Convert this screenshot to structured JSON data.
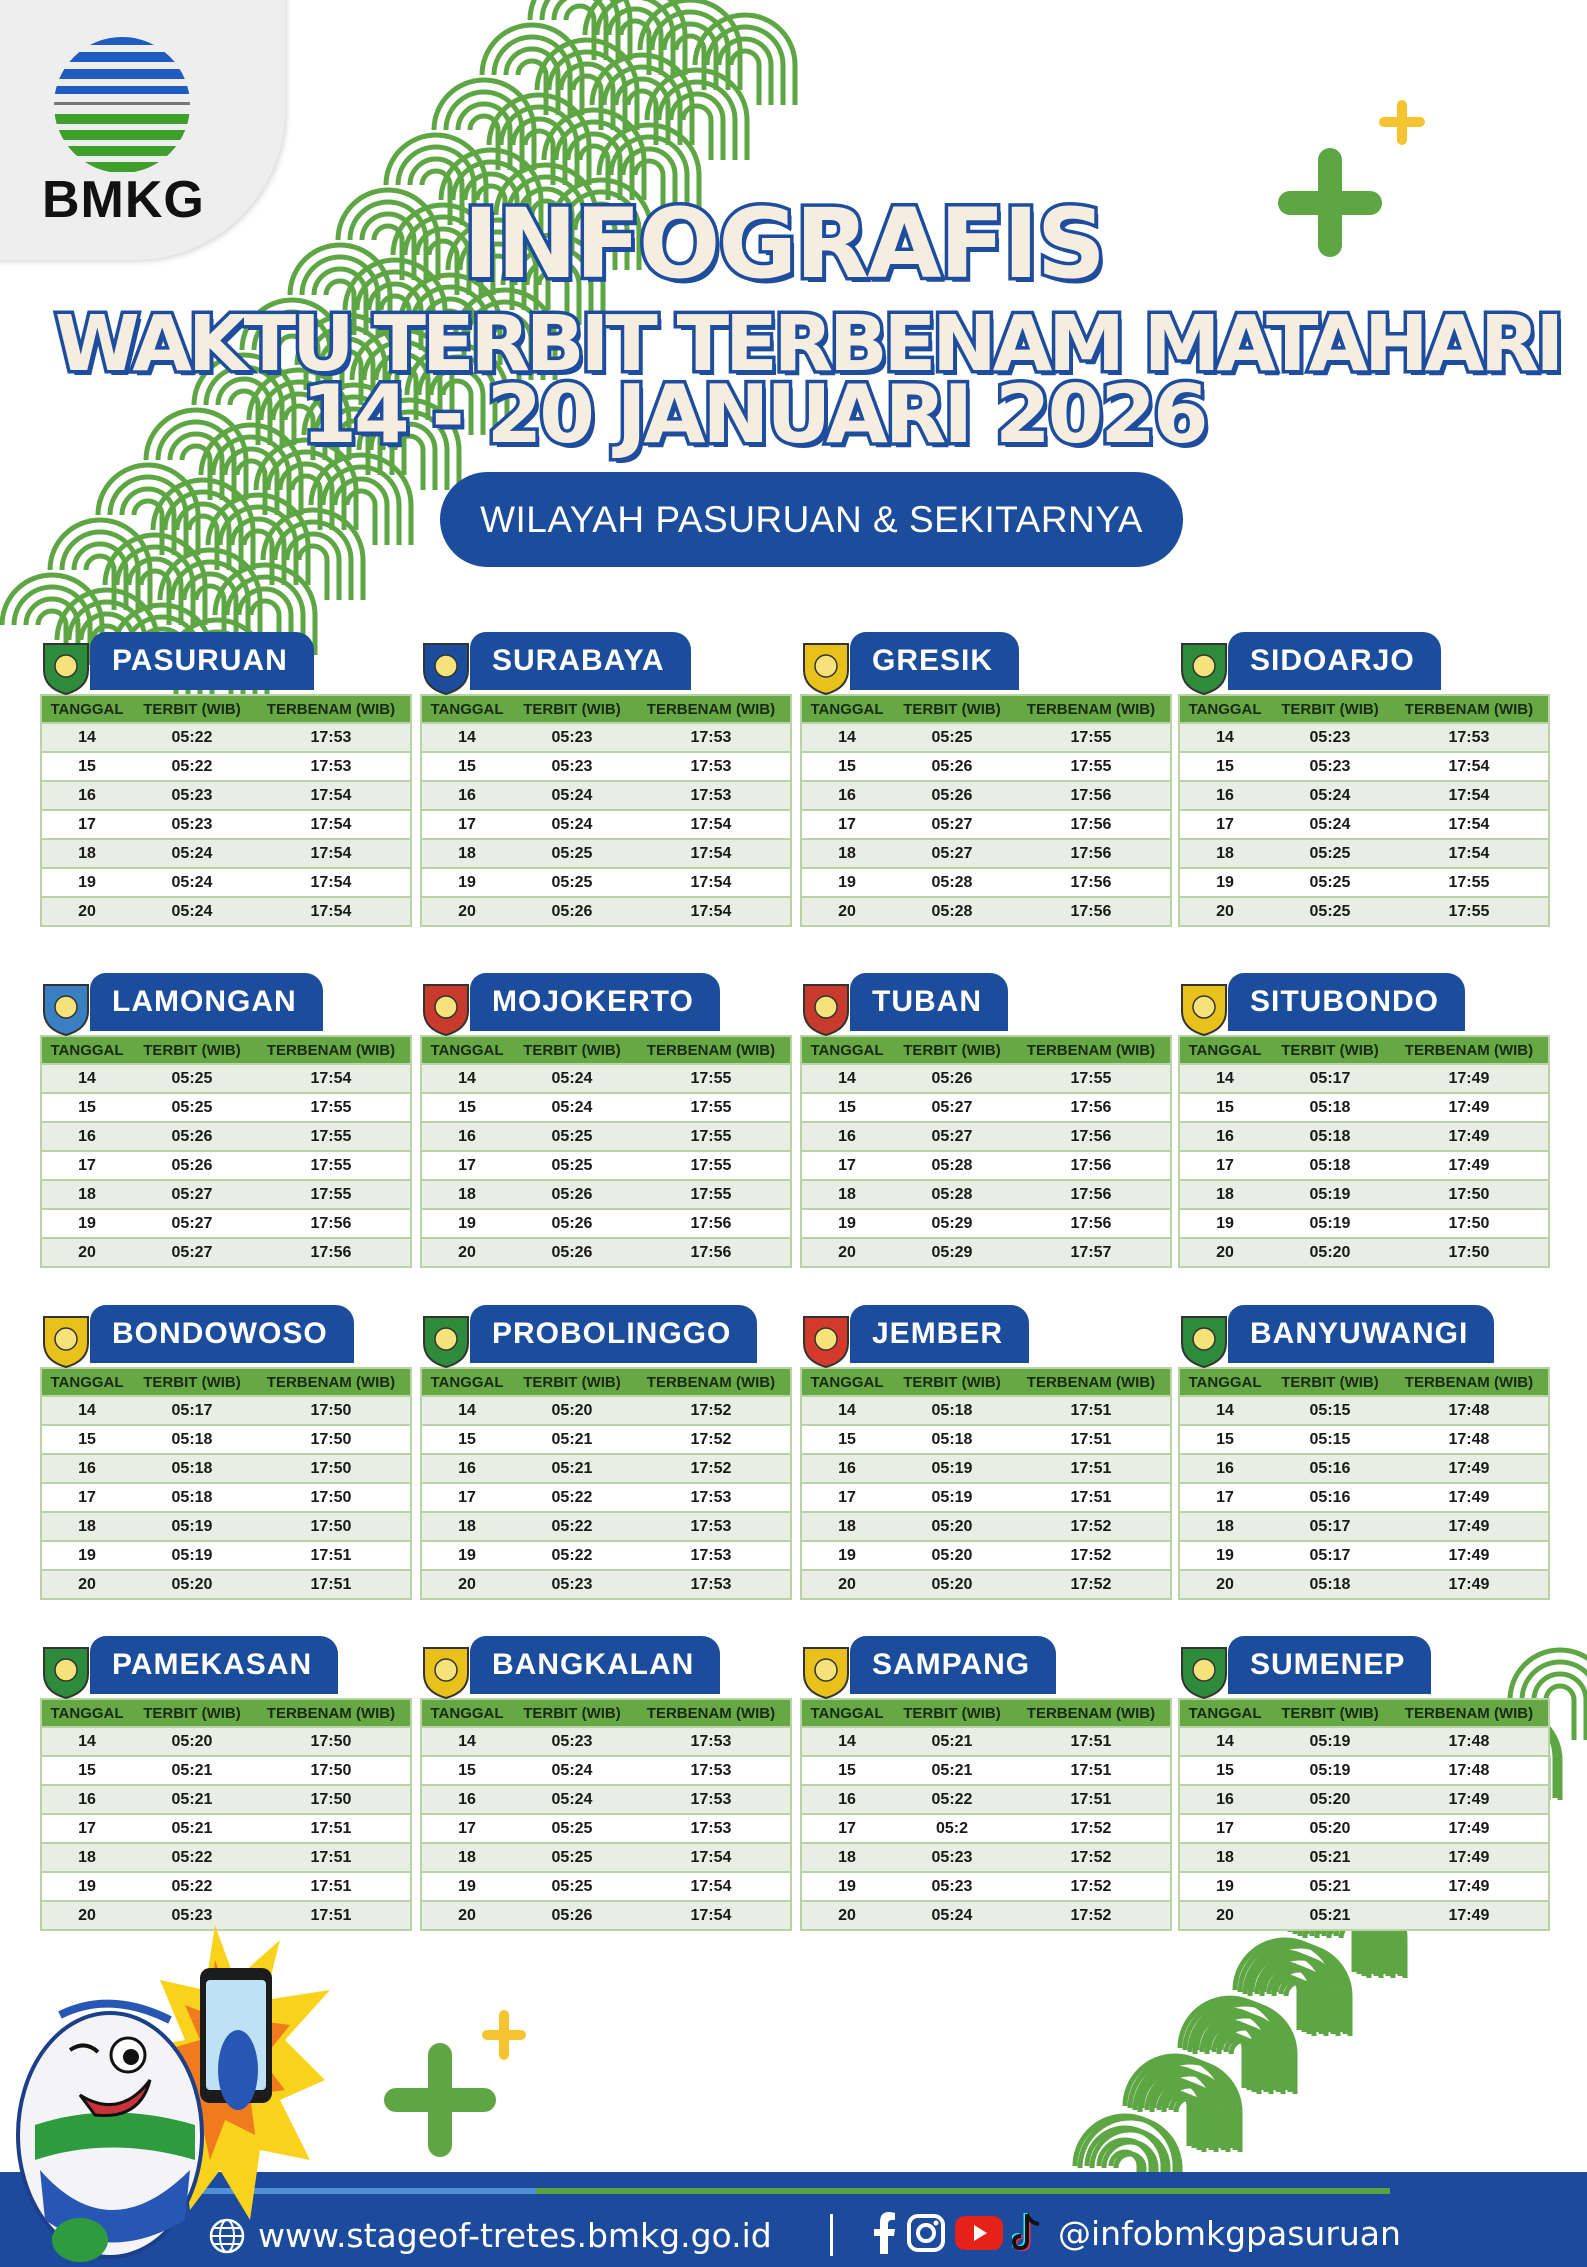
{
  "brand": {
    "logo_text": "BMKG",
    "colors": {
      "blue": "#1c4c9c",
      "green": "#66a844",
      "cream": "#f4ede0",
      "yellow": "#f6c431"
    }
  },
  "header": {
    "title_line1": "INFOGRAFIS",
    "title_line2": "WAKTU TERBIT TERBENAM MATAHARI",
    "title_line3": "14 - 20 JANUARI  2026",
    "subtitle": "WILAYAH PASURUAN & SEKITARNYA"
  },
  "columns": [
    "TANGGAL",
    "TERBIT (WIB)",
    "TERBENAM (WIB)"
  ],
  "regions": [
    {
      "name": "PASURUAN",
      "icon": "pasuruan-emblem-icon",
      "rows": [
        [
          "14",
          "05:22",
          "17:53"
        ],
        [
          "15",
          "05:22",
          "17:53"
        ],
        [
          "16",
          "05:23",
          "17:54"
        ],
        [
          "17",
          "05:23",
          "17:54"
        ],
        [
          "18",
          "05:24",
          "17:54"
        ],
        [
          "19",
          "05:24",
          "17:54"
        ],
        [
          "20",
          "05:24",
          "17:54"
        ]
      ]
    },
    {
      "name": "SURABAYA",
      "icon": "surabaya-emblem-icon",
      "rows": [
        [
          "14",
          "05:23",
          "17:53"
        ],
        [
          "15",
          "05:23",
          "17:53"
        ],
        [
          "16",
          "05:24",
          "17:53"
        ],
        [
          "17",
          "05:24",
          "17:54"
        ],
        [
          "18",
          "05:25",
          "17:54"
        ],
        [
          "19",
          "05:25",
          "17:54"
        ],
        [
          "20",
          "05:26",
          "17:54"
        ]
      ]
    },
    {
      "name": "GRESIK",
      "icon": "gresik-emblem-icon",
      "rows": [
        [
          "14",
          "05:25",
          "17:55"
        ],
        [
          "15",
          "05:26",
          "17:55"
        ],
        [
          "16",
          "05:26",
          "17:56"
        ],
        [
          "17",
          "05:27",
          "17:56"
        ],
        [
          "18",
          "05:27",
          "17:56"
        ],
        [
          "19",
          "05:28",
          "17:56"
        ],
        [
          "20",
          "05:28",
          "17:56"
        ]
      ]
    },
    {
      "name": "SIDOARJO",
      "icon": "sidoarjo-emblem-icon",
      "rows": [
        [
          "14",
          "05:23",
          "17:53"
        ],
        [
          "15",
          "05:23",
          "17:54"
        ],
        [
          "16",
          "05:24",
          "17:54"
        ],
        [
          "17",
          "05:24",
          "17:54"
        ],
        [
          "18",
          "05:25",
          "17:54"
        ],
        [
          "19",
          "05:25",
          "17:55"
        ],
        [
          "20",
          "05:25",
          "17:55"
        ]
      ]
    },
    {
      "name": "LAMONGAN",
      "icon": "lamongan-emblem-icon",
      "rows": [
        [
          "14",
          "05:25",
          "17:54"
        ],
        [
          "15",
          "05:25",
          "17:55"
        ],
        [
          "16",
          "05:26",
          "17:55"
        ],
        [
          "17",
          "05:26",
          "17:55"
        ],
        [
          "18",
          "05:27",
          "17:55"
        ],
        [
          "19",
          "05:27",
          "17:56"
        ],
        [
          "20",
          "05:27",
          "17:56"
        ]
      ]
    },
    {
      "name": "MOJOKERTO",
      "icon": "mojokerto-emblem-icon",
      "rows": [
        [
          "14",
          "05:24",
          "17:55"
        ],
        [
          "15",
          "05:24",
          "17:55"
        ],
        [
          "16",
          "05:25",
          "17:55"
        ],
        [
          "17",
          "05:25",
          "17:55"
        ],
        [
          "18",
          "05:26",
          "17:55"
        ],
        [
          "19",
          "05:26",
          "17:56"
        ],
        [
          "20",
          "05:26",
          "17:56"
        ]
      ]
    },
    {
      "name": "TUBAN",
      "icon": "tuban-emblem-icon",
      "rows": [
        [
          "14",
          "05:26",
          "17:55"
        ],
        [
          "15",
          "05:27",
          "17:56"
        ],
        [
          "16",
          "05:27",
          "17:56"
        ],
        [
          "17",
          "05:28",
          "17:56"
        ],
        [
          "18",
          "05:28",
          "17:56"
        ],
        [
          "19",
          "05:29",
          "17:56"
        ],
        [
          "20",
          "05:29",
          "17:57"
        ]
      ]
    },
    {
      "name": "SITUBONDO",
      "icon": "situbondo-emblem-icon",
      "rows": [
        [
          "14",
          "05:17",
          "17:49"
        ],
        [
          "15",
          "05:18",
          "17:49"
        ],
        [
          "16",
          "05:18",
          "17:49"
        ],
        [
          "17",
          "05:18",
          "17:49"
        ],
        [
          "18",
          "05:19",
          "17:50"
        ],
        [
          "19",
          "05:19",
          "17:50"
        ],
        [
          "20",
          "05:20",
          "17:50"
        ]
      ]
    },
    {
      "name": "BONDOWOSO",
      "icon": "bondowoso-emblem-icon",
      "rows": [
        [
          "14",
          "05:17",
          "17:50"
        ],
        [
          "15",
          "05:18",
          "17:50"
        ],
        [
          "16",
          "05:18",
          "17:50"
        ],
        [
          "17",
          "05:18",
          "17:50"
        ],
        [
          "18",
          "05:19",
          "17:50"
        ],
        [
          "19",
          "05:19",
          "17:51"
        ],
        [
          "20",
          "05:20",
          "17:51"
        ]
      ]
    },
    {
      "name": "PROBOLINGGO",
      "icon": "probolinggo-emblem-icon",
      "rows": [
        [
          "14",
          "05:20",
          "17:52"
        ],
        [
          "15",
          "05:21",
          "17:52"
        ],
        [
          "16",
          "05:21",
          "17:52"
        ],
        [
          "17",
          "05:22",
          "17:53"
        ],
        [
          "18",
          "05:22",
          "17:53"
        ],
        [
          "19",
          "05:22",
          "17:53"
        ],
        [
          "20",
          "05:23",
          "17:53"
        ]
      ]
    },
    {
      "name": "JEMBER",
      "icon": "jember-emblem-icon",
      "rows": [
        [
          "14",
          "05:18",
          "17:51"
        ],
        [
          "15",
          "05:18",
          "17:51"
        ],
        [
          "16",
          "05:19",
          "17:51"
        ],
        [
          "17",
          "05:19",
          "17:51"
        ],
        [
          "18",
          "05:20",
          "17:52"
        ],
        [
          "19",
          "05:20",
          "17:52"
        ],
        [
          "20",
          "05:20",
          "17:52"
        ]
      ]
    },
    {
      "name": "BANYUWANGI",
      "icon": "banyuwangi-emblem-icon",
      "rows": [
        [
          "14",
          "05:15",
          "17:48"
        ],
        [
          "15",
          "05:15",
          "17:48"
        ],
        [
          "16",
          "05:16",
          "17:49"
        ],
        [
          "17",
          "05:16",
          "17:49"
        ],
        [
          "18",
          "05:17",
          "17:49"
        ],
        [
          "19",
          "05:17",
          "17:49"
        ],
        [
          "20",
          "05:18",
          "17:49"
        ]
      ]
    },
    {
      "name": "PAMEKASAN",
      "icon": "pamekasan-emblem-icon",
      "rows": [
        [
          "14",
          "05:20",
          "17:50"
        ],
        [
          "15",
          "05:21",
          "17:50"
        ],
        [
          "16",
          "05:21",
          "17:50"
        ],
        [
          "17",
          "05:21",
          "17:51"
        ],
        [
          "18",
          "05:22",
          "17:51"
        ],
        [
          "19",
          "05:22",
          "17:51"
        ],
        [
          "20",
          "05:23",
          "17:51"
        ]
      ]
    },
    {
      "name": "BANGKALAN",
      "icon": "bangkalan-emblem-icon",
      "rows": [
        [
          "14",
          "05:23",
          "17:53"
        ],
        [
          "15",
          "05:24",
          "17:53"
        ],
        [
          "16",
          "05:24",
          "17:53"
        ],
        [
          "17",
          "05:25",
          "17:53"
        ],
        [
          "18",
          "05:25",
          "17:54"
        ],
        [
          "19",
          "05:25",
          "17:54"
        ],
        [
          "20",
          "05:26",
          "17:54"
        ]
      ]
    },
    {
      "name": "SAMPANG",
      "icon": "sampang-emblem-icon",
      "rows": [
        [
          "14",
          "05:21",
          "17:51"
        ],
        [
          "15",
          "05:21",
          "17:51"
        ],
        [
          "16",
          "05:22",
          "17:51"
        ],
        [
          "17",
          "05:2",
          "17:52"
        ],
        [
          "18",
          "05:23",
          "17:52"
        ],
        [
          "19",
          "05:23",
          "17:52"
        ],
        [
          "20",
          "05:24",
          "17:52"
        ]
      ]
    },
    {
      "name": "SUMENEP",
      "icon": "sumenep-emblem-icon",
      "rows": [
        [
          "14",
          "05:19",
          "17:48"
        ],
        [
          "15",
          "05:19",
          "17:48"
        ],
        [
          "16",
          "05:20",
          "17:49"
        ],
        [
          "17",
          "05:20",
          "17:49"
        ],
        [
          "18",
          "05:21",
          "17:49"
        ],
        [
          "19",
          "05:21",
          "17:49"
        ],
        [
          "20",
          "05:21",
          "17:49"
        ]
      ]
    }
  ],
  "footer": {
    "website": "www.stageof-tretes.bmkg.go.id",
    "social_handle": "@infobmkgpasuruan",
    "social_icons": [
      "facebook-icon",
      "instagram-icon",
      "youtube-icon",
      "tiktok-icon"
    ]
  }
}
